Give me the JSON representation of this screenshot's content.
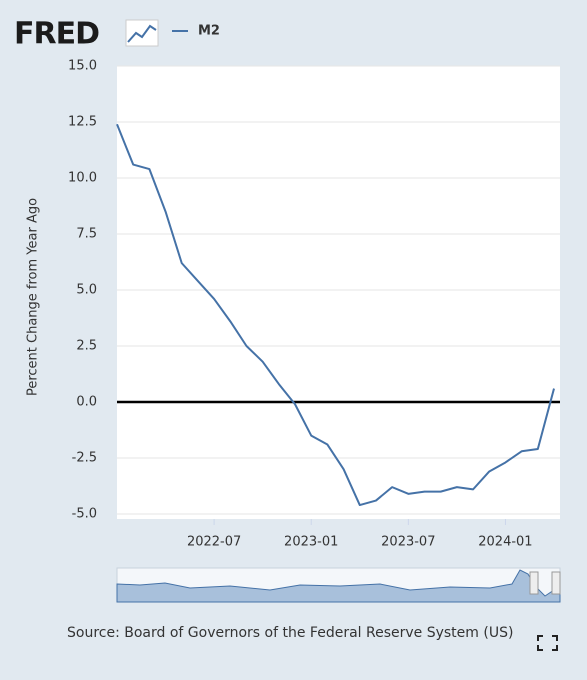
{
  "logo": "FRED",
  "chart_data": {
    "type": "line",
    "y_label": "Percent Change from Year Ago",
    "source": "Source: Board of Governors of the Federal Reserve System (US)",
    "x": [
      "2022-01",
      "2022-02",
      "2022-03",
      "2022-04",
      "2022-05",
      "2022-06",
      "2022-07",
      "2022-08",
      "2022-09",
      "2022-10",
      "2022-11",
      "2022-12",
      "2023-01",
      "2023-02",
      "2023-03",
      "2023-04",
      "2023-05",
      "2023-06",
      "2023-07",
      "2023-08",
      "2023-09",
      "2023-10",
      "2023-11",
      "2023-12",
      "2024-01",
      "2024-02",
      "2024-03",
      "2024-04"
    ],
    "series": [
      {
        "name": "M2",
        "color": "#4572a7",
        "values": [
          12.4,
          10.6,
          10.4,
          8.5,
          6.2,
          5.4,
          4.6,
          3.6,
          2.5,
          1.8,
          0.8,
          -0.1,
          -1.5,
          -1.9,
          -3.0,
          -4.6,
          -4.4,
          -3.8,
          -4.1,
          -4.0,
          -4.0,
          -3.8,
          -3.9,
          -3.1,
          -2.7,
          -2.2,
          -2.1,
          0.6
        ]
      }
    ],
    "xlim": [
      "2022-01",
      "2024-04"
    ],
    "xticks": [
      "2022-07",
      "2023-01",
      "2023-07",
      "2024-01"
    ],
    "ylim": [
      -5,
      15
    ],
    "yticks": [
      {
        "value": -5,
        "label": "-5.0"
      },
      -2.5,
      {
        "value": 0,
        "label": "0.0"
      },
      2.5,
      {
        "value": 5,
        "label": "5.0"
      },
      7.5,
      {
        "value": 10,
        "label": "10.0"
      },
      12.5,
      {
        "value": 15,
        "label": "15.0"
      }
    ],
    "grid": true,
    "zero_line": true,
    "legend": "top-left"
  }
}
